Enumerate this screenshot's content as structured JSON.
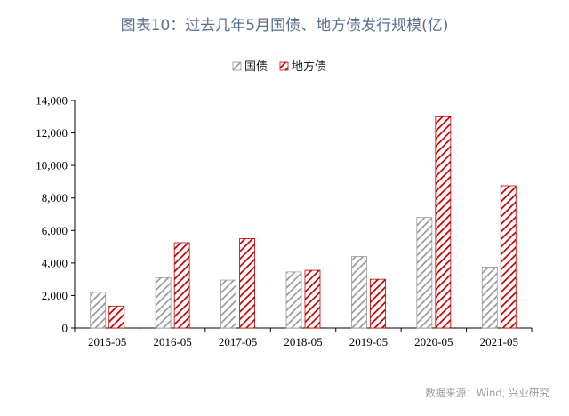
{
  "chart_data": {
    "type": "bar",
    "title": "图表10：过去几年5月国债、地方债发行规模(亿)",
    "categories": [
      "2015-05",
      "2016-05",
      "2017-05",
      "2018-05",
      "2019-05",
      "2020-05",
      "2021-05"
    ],
    "series": [
      {
        "name": "国债",
        "values": [
          2200,
          3100,
          2950,
          3450,
          4400,
          6800,
          3750
        ],
        "color": "#9a9a9a"
      },
      {
        "name": "地方债",
        "values": [
          1350,
          5250,
          5500,
          3550,
          3000,
          13000,
          8750
        ],
        "color": "#c00000"
      }
    ],
    "ylim": [
      0,
      14000
    ],
    "yticks": [
      "0",
      "2,000",
      "4,000",
      "6,000",
      "8,000",
      "10,000",
      "12,000",
      "14,000"
    ],
    "xlabel": "",
    "ylabel": "",
    "grid": false,
    "legend": "top-center",
    "bar_fill": "diagonal-hatch",
    "source": "数据来源：Wind, 兴业研究"
  }
}
